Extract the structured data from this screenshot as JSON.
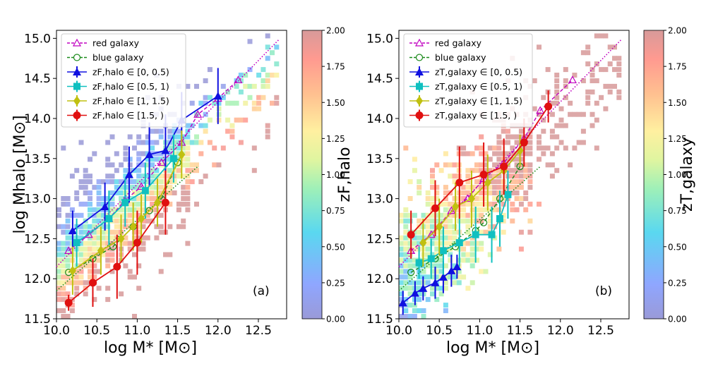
{
  "colors": {
    "red_galaxy": "#c000c0",
    "blue_galaxy": "#1a8a1a",
    "bin1": "#1010e0",
    "bin2": "#10c0c0",
    "bin3": "#c0c010",
    "bin4": "#e01010"
  },
  "chart_data": [
    {
      "type": "scatter",
      "panel_label": "(a)",
      "xlabel": "log  M* [M⊙]",
      "ylabel": "log  Mhalo [M⊙]",
      "colorbar_label": "zF,halo",
      "colorbar_range": [
        0,
        2
      ],
      "colorbar_ticks": [
        "0.00",
        "0.25",
        "0.50",
        "0.75",
        "1.00",
        "1.25",
        "1.50",
        "1.75",
        "2.00"
      ],
      "xlim": [
        10.0,
        12.85
      ],
      "ylim": [
        11.5,
        15.1
      ],
      "xticks": [
        "10.0",
        "10.5",
        "11.0",
        "11.5",
        "12.0",
        "12.5"
      ],
      "yticks": [
        "11.5",
        "12.0",
        "12.5",
        "13.0",
        "13.5",
        "14.0",
        "14.5",
        "15.0"
      ],
      "legend": [
        "red galaxy",
        "blue galaxy",
        "zF,halo ∈ [0, 0.5)",
        "zF,halo ∈ [0.5, 1)",
        "zF,halo ∈ [1, 1.5)",
        "zF,halo ∈ [1.5, )"
      ],
      "red_galaxy": {
        "x": [
          10.15,
          10.4,
          10.65,
          10.85,
          11.05,
          11.3,
          11.55,
          11.75,
          12.0,
          12.25
        ],
        "y": [
          12.35,
          12.55,
          12.75,
          12.98,
          13.15,
          13.45,
          13.7,
          14.05,
          14.25,
          14.48
        ]
      },
      "blue_galaxy": {
        "x": [
          10.15,
          10.45,
          10.7,
          10.95,
          11.15,
          11.3,
          11.5
        ],
        "y": [
          12.08,
          12.25,
          12.4,
          12.65,
          12.85,
          13.0,
          13.45
        ]
      },
      "red_fit": {
        "x": [
          10.0,
          12.75
        ],
        "y": [
          12.15,
          14.98
        ]
      },
      "blue_fit": {
        "x": [
          10.0,
          11.75
        ],
        "y": [
          11.85,
          13.4
        ]
      },
      "series": [
        {
          "name": "bin1",
          "x": [
            10.2,
            10.6,
            10.9,
            11.15,
            11.35,
            11.55,
            12.0
          ],
          "y": [
            12.6,
            12.9,
            13.3,
            13.55,
            13.6,
            13.98,
            14.28
          ],
          "err": [
            0.25,
            0.3,
            0.35,
            0.4,
            0.45,
            0.35,
            0.35
          ]
        },
        {
          "name": "bin2",
          "x": [
            10.25,
            10.65,
            10.85,
            11.1,
            11.45
          ],
          "y": [
            12.45,
            12.75,
            12.95,
            13.1,
            13.5
          ],
          "err": [
            0.3,
            0.35,
            0.3,
            0.35,
            0.3
          ]
        },
        {
          "name": "bin3",
          "x": [
            10.2,
            10.55,
            10.8,
            10.95,
            11.05,
            11.25,
            11.55
          ],
          "y": [
            12.1,
            12.35,
            12.5,
            12.65,
            12.75,
            12.95,
            13.55
          ]
        },
        {
          "name": "bin4",
          "x": [
            10.15,
            10.45,
            10.75,
            11.0,
            11.35
          ],
          "y": [
            11.7,
            11.95,
            12.15,
            12.45,
            12.95
          ],
          "err": [
            0.1,
            0.3,
            0.4,
            0.4,
            0.4
          ]
        }
      ]
    },
    {
      "type": "scatter",
      "panel_label": "(b)",
      "xlabel": "log  M* [M⊙]",
      "ylabel": "",
      "colorbar_label": "zT,galaxy",
      "colorbar_range": [
        0,
        2
      ],
      "colorbar_ticks": [
        "0.00",
        "0.25",
        "0.50",
        "0.75",
        "1.00",
        "1.25",
        "1.50",
        "1.75",
        "2.00"
      ],
      "xlim": [
        10.0,
        12.85
      ],
      "ylim": [
        11.5,
        15.1
      ],
      "xticks": [
        "10.0",
        "10.5",
        "11.0",
        "11.5",
        "12.0",
        "12.5"
      ],
      "yticks": [
        "11.5",
        "12.0",
        "12.5",
        "13.0",
        "13.5",
        "14.0",
        "14.5",
        "15.0"
      ],
      "legend": [
        "red galaxy",
        "blue galaxy",
        "zT,galaxy ∈ [0, 0.5)",
        "zT,galaxy ∈ [0.5, 1)",
        "zT,galaxy ∈ [1, 1.5)",
        "zT,galaxy ∈ [1.5, )"
      ],
      "red_galaxy": {
        "x": [
          10.15,
          10.4,
          10.65,
          10.85,
          11.05,
          11.3,
          11.55,
          11.75,
          12.15
        ],
        "y": [
          12.35,
          12.55,
          12.85,
          13.0,
          13.25,
          13.45,
          13.75,
          14.1,
          14.48
        ]
      },
      "blue_galaxy": {
        "x": [
          10.15,
          10.45,
          10.7,
          10.95,
          11.05,
          11.25,
          11.5
        ],
        "y": [
          12.08,
          12.25,
          12.4,
          12.6,
          12.7,
          13.0,
          13.4
        ]
      },
      "red_fit": {
        "x": [
          10.0,
          12.75
        ],
        "y": [
          12.15,
          14.98
        ]
      },
      "blue_fit": {
        "x": [
          10.0,
          11.75
        ],
        "y": [
          11.85,
          13.4
        ]
      },
      "series": [
        {
          "name": "bin1",
          "x": [
            10.05,
            10.2,
            10.3,
            10.45,
            10.55,
            10.65,
            10.72
          ],
          "y": [
            11.7,
            11.82,
            11.88,
            11.95,
            12.02,
            12.1,
            12.15
          ],
          "err": [
            0.15,
            0.15,
            0.15,
            0.2,
            0.2,
            0.2,
            0.15
          ]
        },
        {
          "name": "bin2",
          "x": [
            10.25,
            10.4,
            10.55,
            10.75,
            10.95,
            11.15,
            11.25,
            11.35
          ],
          "y": [
            12.2,
            12.25,
            12.35,
            12.45,
            12.55,
            12.55,
            12.75,
            13.05
          ],
          "err": [
            0.2,
            0.25,
            0.3,
            0.3,
            0.35,
            0.35,
            0.35,
            0.3
          ]
        },
        {
          "name": "bin3",
          "x": [
            10.3,
            10.5,
            10.7,
            10.9,
            11.1,
            11.3,
            11.5
          ],
          "y": [
            12.45,
            12.65,
            12.9,
            13.0,
            13.2,
            13.35,
            13.6
          ],
          "err": [
            0.3,
            0.35,
            0.3,
            0.35,
            0.35,
            0.3,
            0.2
          ]
        },
        {
          "name": "bin4",
          "x": [
            10.15,
            10.45,
            10.75,
            11.05,
            11.3,
            11.55,
            11.85
          ],
          "y": [
            12.55,
            12.88,
            13.2,
            13.3,
            13.4,
            13.7,
            14.15
          ],
          "err": [
            0.3,
            0.35,
            0.45,
            0.4,
            0.35,
            0.3,
            0.2
          ]
        }
      ]
    }
  ]
}
